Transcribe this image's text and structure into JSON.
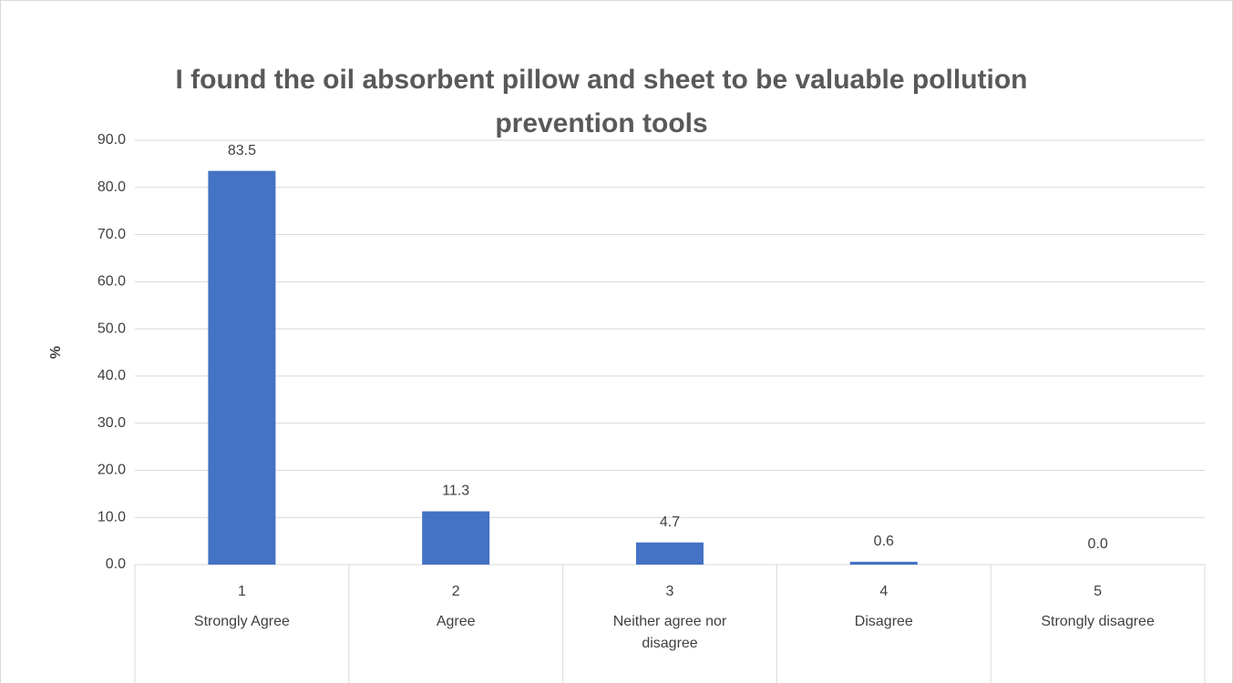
{
  "chart_data": {
    "type": "bar",
    "title": "I found the oil absorbent pillow and sheet to be valuable pollution prevention tools",
    "y_label": "%",
    "categories": [
      "1",
      "2",
      "3",
      "4",
      "5"
    ],
    "category_labels": [
      "Strongly Agree",
      "Agree",
      "Neither agree nor disagree",
      "Disagree",
      "Strongly disagree"
    ],
    "values": [
      83.5,
      11.3,
      4.7,
      0.6,
      0
    ],
    "value_labels": [
      "83.5",
      "11.3",
      "4.7",
      "0.6",
      "0.0"
    ],
    "color": "#4472c4",
    "ylim": [
      0,
      90
    ],
    "yticks": [
      {
        "value": 0,
        "label": "0.0"
      },
      {
        "value": 10,
        "label": "10.0"
      },
      {
        "value": 20,
        "label": "20.0"
      },
      {
        "value": 30,
        "label": "30.0"
      },
      {
        "value": 40,
        "label": "40.0"
      },
      {
        "value": 50,
        "label": "50.0"
      },
      {
        "value": 60,
        "label": "60.0"
      },
      {
        "value": 70,
        "label": "70.0"
      },
      {
        "value": 80,
        "label": "80.0"
      },
      {
        "value": 90,
        "label": "90.0"
      }
    ],
    "grid": true
  }
}
